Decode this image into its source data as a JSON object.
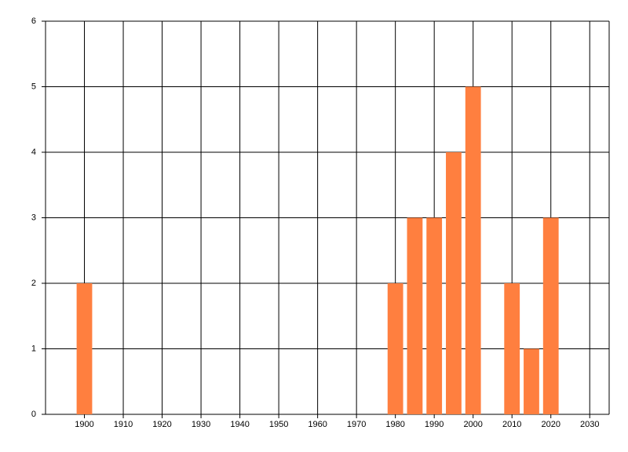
{
  "chart_data": {
    "type": "bar",
    "x": [
      1900,
      1980,
      1985,
      1990,
      1995,
      2000,
      2010,
      2015,
      2020
    ],
    "values": [
      2,
      2,
      3,
      3,
      4,
      5,
      2,
      1,
      3
    ],
    "color": "#ff7f3f",
    "xlim": [
      1890,
      2035
    ],
    "xticks": [
      1900,
      1910,
      1920,
      1930,
      1940,
      1950,
      1960,
      1970,
      1980,
      1990,
      2000,
      2010,
      2020,
      2030
    ],
    "ylim": [
      0,
      6
    ],
    "yticks": [
      0,
      1,
      2,
      3,
      4,
      5,
      6
    ],
    "grid": true
  }
}
